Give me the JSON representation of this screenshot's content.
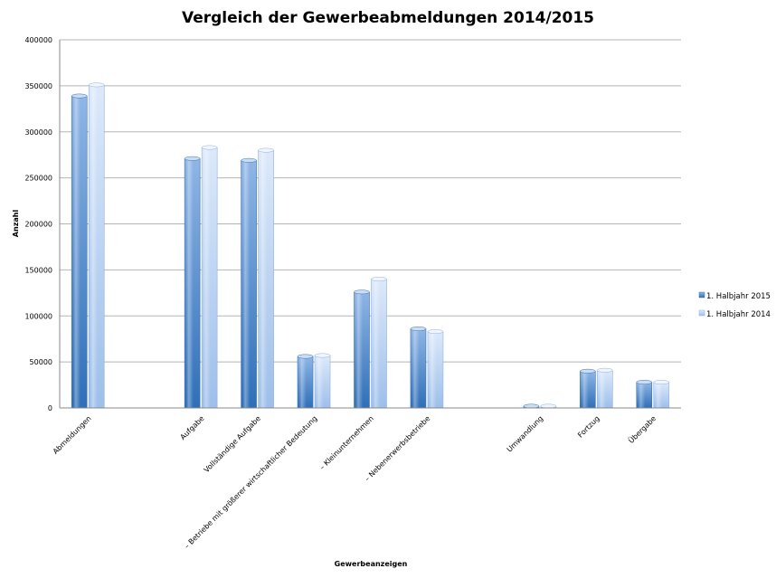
{
  "chart_data": {
    "type": "bar",
    "title": "Vergleich der Gewerbeabmeldungen 2014/2015",
    "xlabel": "Gewerbeanzeigen",
    "ylabel": "Anzahl",
    "ylim": [
      0,
      400000
    ],
    "yticks": [
      "0",
      "50000",
      "100000",
      "150000",
      "200000",
      "250000",
      "300000",
      "350000",
      "400000"
    ],
    "grid": true,
    "legend_position": "right",
    "categories": [
      "Abmeldungen",
      "",
      "Aufgabe",
      "Vollständige Aufgabe",
      "– Betriebe mit größerer wirtschaftlicher Bedeutung",
      "– Kleinunternehmen",
      "– Nebenerwerbsbetriebe",
      "",
      "Umwandlung",
      "Fortzug",
      "Übergabe"
    ],
    "series": [
      {
        "name": "1. Halbjahr 2015",
        "color": "#4a86c8",
        "values": [
          339000,
          null,
          271000,
          269000,
          56000,
          126000,
          86000,
          null,
          2000,
          40000,
          28000
        ]
      },
      {
        "name": "1. Halbjahr 2014",
        "color": "#a9c8ef",
        "values": [
          351000,
          null,
          283000,
          280000,
          57000,
          140000,
          83000,
          null,
          2000,
          41000,
          28000
        ]
      }
    ]
  }
}
